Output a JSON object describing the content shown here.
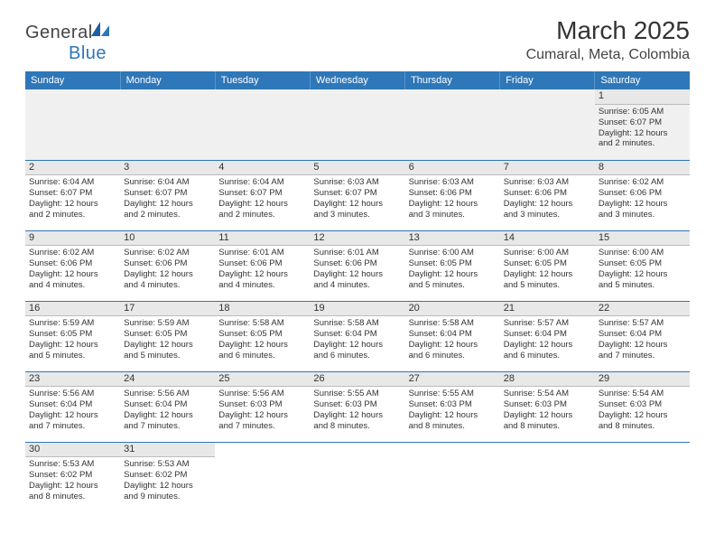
{
  "logo": {
    "text1": "General",
    "text2": "Blue"
  },
  "title": "March 2025",
  "location": "Cumaral, Meta, Colombia",
  "dayHeaders": [
    "Sunday",
    "Monday",
    "Tuesday",
    "Wednesday",
    "Thursday",
    "Friday",
    "Saturday"
  ],
  "colors": {
    "headerBg": "#2e77b8",
    "headerText": "#ffffff",
    "rowBorder": "#2e77b8",
    "dayNumBg": "#e8e8e8",
    "emptyBg": "#f0f0f0",
    "bodyText": "#333333",
    "logoBlue": "#2e77b8"
  },
  "weeks": [
    [
      null,
      null,
      null,
      null,
      null,
      null,
      {
        "n": "1",
        "sr": "Sunrise: 6:05 AM",
        "ss": "Sunset: 6:07 PM",
        "d1": "Daylight: 12 hours",
        "d2": "and 2 minutes."
      }
    ],
    [
      {
        "n": "2",
        "sr": "Sunrise: 6:04 AM",
        "ss": "Sunset: 6:07 PM",
        "d1": "Daylight: 12 hours",
        "d2": "and 2 minutes."
      },
      {
        "n": "3",
        "sr": "Sunrise: 6:04 AM",
        "ss": "Sunset: 6:07 PM",
        "d1": "Daylight: 12 hours",
        "d2": "and 2 minutes."
      },
      {
        "n": "4",
        "sr": "Sunrise: 6:04 AM",
        "ss": "Sunset: 6:07 PM",
        "d1": "Daylight: 12 hours",
        "d2": "and 2 minutes."
      },
      {
        "n": "5",
        "sr": "Sunrise: 6:03 AM",
        "ss": "Sunset: 6:07 PM",
        "d1": "Daylight: 12 hours",
        "d2": "and 3 minutes."
      },
      {
        "n": "6",
        "sr": "Sunrise: 6:03 AM",
        "ss": "Sunset: 6:06 PM",
        "d1": "Daylight: 12 hours",
        "d2": "and 3 minutes."
      },
      {
        "n": "7",
        "sr": "Sunrise: 6:03 AM",
        "ss": "Sunset: 6:06 PM",
        "d1": "Daylight: 12 hours",
        "d2": "and 3 minutes."
      },
      {
        "n": "8",
        "sr": "Sunrise: 6:02 AM",
        "ss": "Sunset: 6:06 PM",
        "d1": "Daylight: 12 hours",
        "d2": "and 3 minutes."
      }
    ],
    [
      {
        "n": "9",
        "sr": "Sunrise: 6:02 AM",
        "ss": "Sunset: 6:06 PM",
        "d1": "Daylight: 12 hours",
        "d2": "and 4 minutes."
      },
      {
        "n": "10",
        "sr": "Sunrise: 6:02 AM",
        "ss": "Sunset: 6:06 PM",
        "d1": "Daylight: 12 hours",
        "d2": "and 4 minutes."
      },
      {
        "n": "11",
        "sr": "Sunrise: 6:01 AM",
        "ss": "Sunset: 6:06 PM",
        "d1": "Daylight: 12 hours",
        "d2": "and 4 minutes."
      },
      {
        "n": "12",
        "sr": "Sunrise: 6:01 AM",
        "ss": "Sunset: 6:06 PM",
        "d1": "Daylight: 12 hours",
        "d2": "and 4 minutes."
      },
      {
        "n": "13",
        "sr": "Sunrise: 6:00 AM",
        "ss": "Sunset: 6:05 PM",
        "d1": "Daylight: 12 hours",
        "d2": "and 5 minutes."
      },
      {
        "n": "14",
        "sr": "Sunrise: 6:00 AM",
        "ss": "Sunset: 6:05 PM",
        "d1": "Daylight: 12 hours",
        "d2": "and 5 minutes."
      },
      {
        "n": "15",
        "sr": "Sunrise: 6:00 AM",
        "ss": "Sunset: 6:05 PM",
        "d1": "Daylight: 12 hours",
        "d2": "and 5 minutes."
      }
    ],
    [
      {
        "n": "16",
        "sr": "Sunrise: 5:59 AM",
        "ss": "Sunset: 6:05 PM",
        "d1": "Daylight: 12 hours",
        "d2": "and 5 minutes."
      },
      {
        "n": "17",
        "sr": "Sunrise: 5:59 AM",
        "ss": "Sunset: 6:05 PM",
        "d1": "Daylight: 12 hours",
        "d2": "and 5 minutes."
      },
      {
        "n": "18",
        "sr": "Sunrise: 5:58 AM",
        "ss": "Sunset: 6:05 PM",
        "d1": "Daylight: 12 hours",
        "d2": "and 6 minutes."
      },
      {
        "n": "19",
        "sr": "Sunrise: 5:58 AM",
        "ss": "Sunset: 6:04 PM",
        "d1": "Daylight: 12 hours",
        "d2": "and 6 minutes."
      },
      {
        "n": "20",
        "sr": "Sunrise: 5:58 AM",
        "ss": "Sunset: 6:04 PM",
        "d1": "Daylight: 12 hours",
        "d2": "and 6 minutes."
      },
      {
        "n": "21",
        "sr": "Sunrise: 5:57 AM",
        "ss": "Sunset: 6:04 PM",
        "d1": "Daylight: 12 hours",
        "d2": "and 6 minutes."
      },
      {
        "n": "22",
        "sr": "Sunrise: 5:57 AM",
        "ss": "Sunset: 6:04 PM",
        "d1": "Daylight: 12 hours",
        "d2": "and 7 minutes."
      }
    ],
    [
      {
        "n": "23",
        "sr": "Sunrise: 5:56 AM",
        "ss": "Sunset: 6:04 PM",
        "d1": "Daylight: 12 hours",
        "d2": "and 7 minutes."
      },
      {
        "n": "24",
        "sr": "Sunrise: 5:56 AM",
        "ss": "Sunset: 6:04 PM",
        "d1": "Daylight: 12 hours",
        "d2": "and 7 minutes."
      },
      {
        "n": "25",
        "sr": "Sunrise: 5:56 AM",
        "ss": "Sunset: 6:03 PM",
        "d1": "Daylight: 12 hours",
        "d2": "and 7 minutes."
      },
      {
        "n": "26",
        "sr": "Sunrise: 5:55 AM",
        "ss": "Sunset: 6:03 PM",
        "d1": "Daylight: 12 hours",
        "d2": "and 8 minutes."
      },
      {
        "n": "27",
        "sr": "Sunrise: 5:55 AM",
        "ss": "Sunset: 6:03 PM",
        "d1": "Daylight: 12 hours",
        "d2": "and 8 minutes."
      },
      {
        "n": "28",
        "sr": "Sunrise: 5:54 AM",
        "ss": "Sunset: 6:03 PM",
        "d1": "Daylight: 12 hours",
        "d2": "and 8 minutes."
      },
      {
        "n": "29",
        "sr": "Sunrise: 5:54 AM",
        "ss": "Sunset: 6:03 PM",
        "d1": "Daylight: 12 hours",
        "d2": "and 8 minutes."
      }
    ],
    [
      {
        "n": "30",
        "sr": "Sunrise: 5:53 AM",
        "ss": "Sunset: 6:02 PM",
        "d1": "Daylight: 12 hours",
        "d2": "and 8 minutes."
      },
      {
        "n": "31",
        "sr": "Sunrise: 5:53 AM",
        "ss": "Sunset: 6:02 PM",
        "d1": "Daylight: 12 hours",
        "d2": "and 9 minutes."
      },
      null,
      null,
      null,
      null,
      null
    ]
  ]
}
